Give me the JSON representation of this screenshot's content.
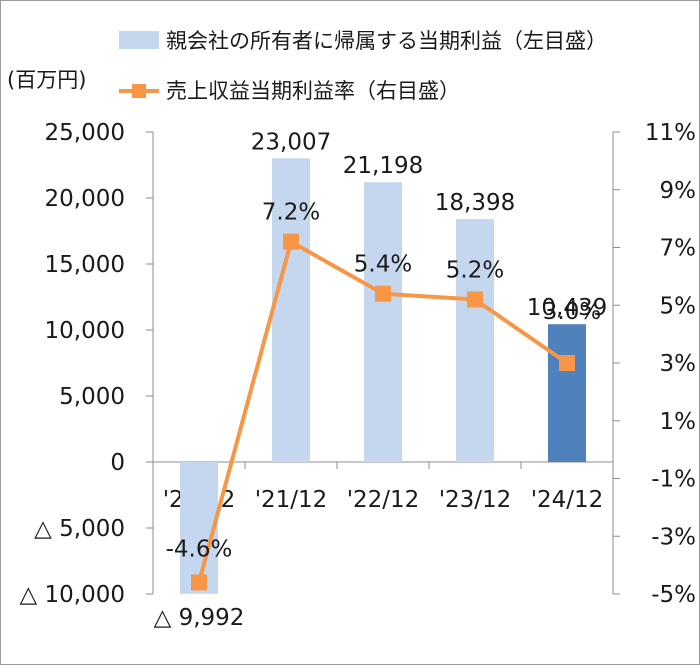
{
  "chart_data": {
    "type": "bar",
    "categories": [
      "'20/12",
      "'21/12",
      "'22/12",
      "'23/12",
      "'24/12"
    ],
    "unit_label": "(百万円)",
    "legend_position": "top",
    "grid": false,
    "series": [
      {
        "name": "親会社の所有者に帰属する当期利益（左目盛）",
        "type": "bar",
        "axis": "left",
        "values": [
          -9992,
          23007,
          21198,
          18398,
          10439
        ],
        "data_labels": [
          "△ 9,992",
          "23,007",
          "21,198",
          "18,398",
          "10,439"
        ],
        "colors": [
          "#c5d7ef",
          "#c5d7ef",
          "#c5d7ef",
          "#c5d7ef",
          "#4f81bd"
        ]
      },
      {
        "name": "売上収益当期利益率（右目盛）",
        "type": "line",
        "axis": "right",
        "values": [
          -4.6,
          7.2,
          5.4,
          5.2,
          3.0
        ],
        "data_labels": [
          "-4.6%",
          "7.2%",
          "5.4%",
          "5.2%",
          "3.0%"
        ],
        "color": "#f79646"
      }
    ],
    "y_left": {
      "ylim": [
        -10000,
        25000
      ],
      "ticks": [
        25000,
        20000,
        15000,
        10000,
        5000,
        0,
        -5000,
        -10000
      ],
      "tick_labels": [
        "25,000",
        "20,000",
        "15,000",
        "10,000",
        "5,000",
        "0",
        "△ 5,000",
        "△ 10,000"
      ]
    },
    "y_right": {
      "ylim": [
        -5,
        11
      ],
      "ticks": [
        11,
        9,
        7,
        5,
        3,
        1,
        -1,
        -3,
        -5
      ],
      "tick_labels": [
        "11%",
        "9%",
        "7%",
        "5%",
        "3%",
        "1%",
        "-1%",
        "-3%",
        "-5%"
      ]
    }
  }
}
